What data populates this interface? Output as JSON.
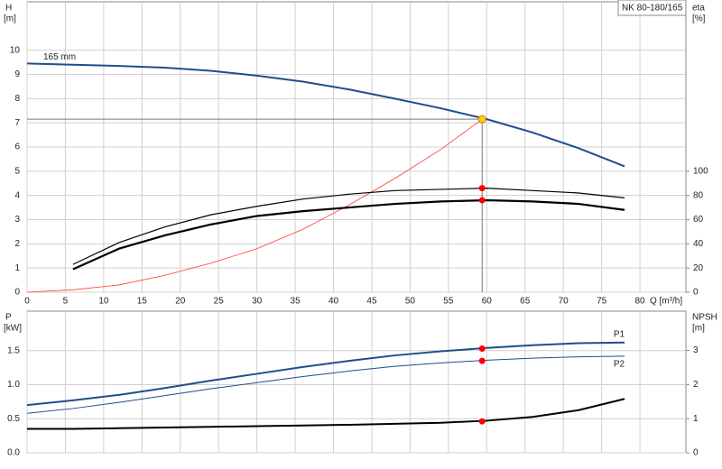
{
  "chart_data": [
    {
      "type": "line",
      "title": "NK 80-180/165",
      "annotation": "165 mm",
      "xlabel": "Q [m³/h]",
      "ylabel": "H",
      "yunit": "[m]",
      "y2label": "eta",
      "y2unit": "[%]",
      "xlim": [
        0,
        86
      ],
      "xticks": [
        0,
        5,
        10,
        15,
        20,
        25,
        30,
        35,
        40,
        45,
        50,
        55,
        60,
        65,
        70,
        75,
        80
      ],
      "ylim": [
        0,
        12
      ],
      "yticks": [
        0,
        1,
        2,
        3,
        4,
        5,
        6,
        7,
        8,
        9,
        10
      ],
      "y2lim": [
        0,
        240
      ],
      "y2ticks": [
        0,
        20,
        40,
        60,
        80,
        100
      ],
      "grid": true,
      "series": [
        {
          "color": "#1f4e8c",
          "line_width": 2,
          "axis": "y",
          "x": [
            0,
            6,
            12,
            18,
            24,
            30,
            36,
            42,
            48,
            54,
            60,
            66,
            72,
            78
          ],
          "values": [
            9.45,
            9.4,
            9.35,
            9.28,
            9.15,
            8.95,
            8.7,
            8.38,
            8.0,
            7.6,
            7.15,
            6.6,
            5.95,
            5.2
          ]
        },
        {
          "color": "#ff3b30",
          "line_width": 0.8,
          "axis": "y",
          "x": [
            0,
            6,
            12,
            18,
            24,
            30,
            36,
            42,
            48,
            54,
            59.4
          ],
          "values": [
            0,
            0.1,
            0.3,
            0.7,
            1.2,
            1.8,
            2.6,
            3.6,
            4.7,
            5.9,
            7.15
          ]
        },
        {
          "color": "#000000",
          "line_width": 1.2,
          "axis": "y2",
          "x": [
            6,
            12,
            18,
            24,
            30,
            36,
            42,
            48,
            54,
            60,
            66,
            72,
            78
          ],
          "values": [
            23,
            41,
            54,
            64,
            71,
            77,
            81,
            84,
            85,
            86,
            84,
            82,
            78
          ]
        },
        {
          "color": "#000000",
          "line_width": 2.2,
          "axis": "y2",
          "x": [
            6,
            12,
            18,
            24,
            30,
            36,
            42,
            48,
            54,
            60,
            66,
            72,
            78
          ],
          "values": [
            19,
            36,
            47,
            56,
            63,
            67,
            70,
            73,
            75,
            76,
            75,
            73,
            68
          ]
        }
      ],
      "points": [
        {
          "x": 59.4,
          "y": 7.15,
          "axis": "y",
          "color": "#ffd400",
          "duty": true
        },
        {
          "x": 59.4,
          "y": 86,
          "axis": "y2",
          "color": "#ff0000"
        },
        {
          "x": 59.4,
          "y": 76,
          "axis": "y2",
          "color": "#ff0000"
        }
      ]
    },
    {
      "type": "line",
      "ylabel": "P",
      "yunit": "[kW]",
      "y2label": "NPSH",
      "y2unit": "[m]",
      "xlim": [
        0,
        86
      ],
      "xticks": [
        0,
        5,
        10,
        15,
        20,
        25,
        30,
        35,
        40,
        45,
        50,
        55,
        60,
        65,
        70,
        75,
        80
      ],
      "ylim": [
        0,
        2.08
      ],
      "yticks": [
        {
          "value": 0,
          "label": "0.0"
        },
        0.5,
        {
          "value": 1,
          "label": "1.0"
        },
        1.5
      ],
      "y2lim": [
        0,
        4.15
      ],
      "y2ticks": [
        0,
        1,
        2,
        3
      ],
      "grid": true,
      "series": [
        {
          "name": "P1",
          "color": "#1f4e8c",
          "line_width": 2,
          "axis": "y",
          "x": [
            0,
            6,
            12,
            18,
            24,
            30,
            36,
            42,
            48,
            54,
            60,
            66,
            72,
            78
          ],
          "values": [
            0.7,
            0.77,
            0.85,
            0.95,
            1.06,
            1.16,
            1.26,
            1.35,
            1.43,
            1.49,
            1.54,
            1.58,
            1.61,
            1.62
          ]
        },
        {
          "name": "P2",
          "color": "#1f4e8c",
          "line_width": 1,
          "axis": "y",
          "x": [
            0,
            6,
            12,
            18,
            24,
            30,
            36,
            42,
            48,
            54,
            60,
            66,
            72,
            78
          ],
          "values": [
            0.58,
            0.65,
            0.74,
            0.84,
            0.94,
            1.03,
            1.12,
            1.2,
            1.27,
            1.32,
            1.36,
            1.39,
            1.41,
            1.42
          ]
        },
        {
          "color": "#000000",
          "line_width": 2,
          "axis": "y2",
          "x": [
            0,
            6,
            12,
            18,
            24,
            30,
            36,
            42,
            48,
            54,
            60,
            66,
            72,
            78
          ],
          "values": [
            0.7,
            0.7,
            0.72,
            0.74,
            0.76,
            0.78,
            0.8,
            0.82,
            0.85,
            0.88,
            0.94,
            1.05,
            1.25,
            1.58
          ]
        }
      ],
      "points": [
        {
          "x": 59.4,
          "y": 1.53,
          "axis": "y",
          "color": "#ff0000"
        },
        {
          "x": 59.4,
          "y": 1.35,
          "axis": "y",
          "color": "#ff0000"
        },
        {
          "x": 59.4,
          "y": 0.92,
          "axis": "y2",
          "color": "#ff0000"
        }
      ]
    }
  ]
}
